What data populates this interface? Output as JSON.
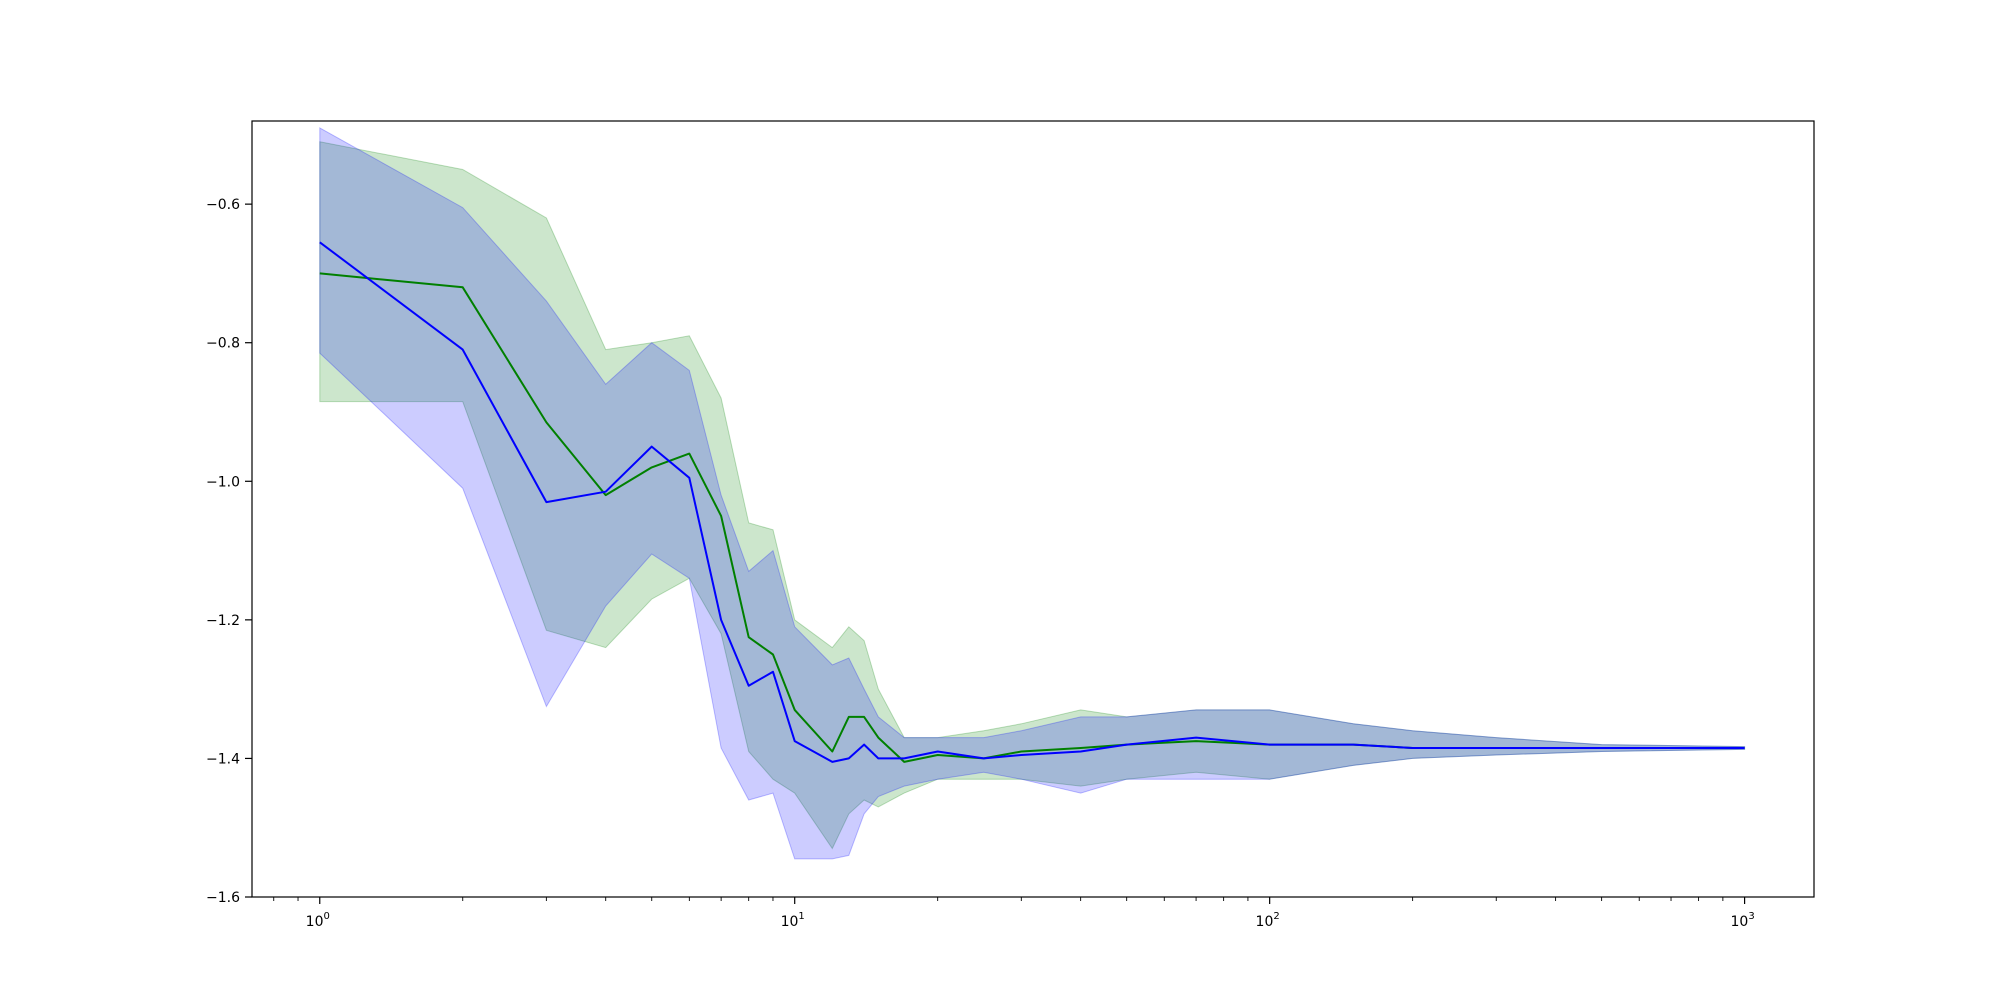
{
  "chart_data": {
    "type": "line",
    "title": "",
    "xlabel": "",
    "ylabel": "",
    "xscale": "log",
    "xlim": [
      0.72,
      1400
    ],
    "ylim": [
      -1.6,
      -0.48
    ],
    "grid": false,
    "legend": "none",
    "x_ticks": [
      {
        "value": 1,
        "base": "10",
        "exp": "0"
      },
      {
        "value": 10,
        "base": "10",
        "exp": "1"
      },
      {
        "value": 100,
        "base": "10",
        "exp": "2"
      },
      {
        "value": 1000,
        "base": "10",
        "exp": "3"
      }
    ],
    "y_ticks": [
      {
        "value": -1.6,
        "label": "−1.6"
      },
      {
        "value": -1.4,
        "label": "−1.4"
      },
      {
        "value": -1.2,
        "label": "−1.2"
      },
      {
        "value": -1.0,
        "label": "−1.0"
      },
      {
        "value": -0.8,
        "label": "−0.8"
      },
      {
        "value": -0.6,
        "label": "−0.6"
      }
    ],
    "series": [
      {
        "color": "#008000",
        "band_color": "#008000",
        "x": [
          1,
          2,
          3,
          4,
          5,
          6,
          7,
          8,
          9,
          10,
          12,
          13,
          14,
          15,
          17,
          20,
          25,
          30,
          40,
          50,
          70,
          100,
          150,
          200,
          300,
          500,
          1000
        ],
        "y": [
          -0.7,
          -0.72,
          -0.915,
          -1.02,
          -0.98,
          -0.96,
          -1.05,
          -1.225,
          -1.25,
          -1.33,
          -1.39,
          -1.34,
          -1.34,
          -1.37,
          -1.405,
          -1.395,
          -1.4,
          -1.39,
          -1.385,
          -1.38,
          -1.375,
          -1.38,
          -1.38,
          -1.385,
          -1.385,
          -1.385,
          -1.385
        ],
        "upper": [
          -0.51,
          -0.55,
          -0.62,
          -0.81,
          -0.8,
          -0.79,
          -0.88,
          -1.06,
          -1.07,
          -1.2,
          -1.24,
          -1.21,
          -1.23,
          -1.3,
          -1.37,
          -1.37,
          -1.36,
          -1.35,
          -1.33,
          -1.34,
          -1.33,
          -1.33,
          -1.35,
          -1.36,
          -1.37,
          -1.38,
          -1.383
        ],
        "lower": [
          -0.885,
          -0.885,
          -1.215,
          -1.24,
          -1.17,
          -1.14,
          -1.22,
          -1.39,
          -1.43,
          -1.45,
          -1.53,
          -1.48,
          -1.46,
          -1.47,
          -1.45,
          -1.43,
          -1.43,
          -1.43,
          -1.44,
          -1.43,
          -1.42,
          -1.43,
          -1.41,
          -1.4,
          -1.395,
          -1.39,
          -1.387
        ]
      },
      {
        "color": "#0000ff",
        "band_color": "#0000ff",
        "x": [
          1,
          2,
          3,
          4,
          5,
          6,
          7,
          8,
          9,
          10,
          12,
          13,
          14,
          15,
          17,
          20,
          25,
          30,
          40,
          50,
          70,
          100,
          150,
          200,
          300,
          500,
          1000
        ],
        "y": [
          -0.655,
          -0.81,
          -1.03,
          -1.015,
          -0.95,
          -0.995,
          -1.2,
          -1.295,
          -1.275,
          -1.375,
          -1.405,
          -1.4,
          -1.38,
          -1.4,
          -1.4,
          -1.39,
          -1.4,
          -1.395,
          -1.39,
          -1.38,
          -1.37,
          -1.38,
          -1.38,
          -1.385,
          -1.385,
          -1.385,
          -1.385
        ],
        "upper": [
          -0.49,
          -0.605,
          -0.74,
          -0.86,
          -0.8,
          -0.84,
          -1.02,
          -1.13,
          -1.1,
          -1.21,
          -1.265,
          -1.255,
          -1.3,
          -1.34,
          -1.37,
          -1.37,
          -1.37,
          -1.36,
          -1.34,
          -1.34,
          -1.33,
          -1.33,
          -1.35,
          -1.36,
          -1.37,
          -1.38,
          -1.383
        ],
        "lower": [
          -0.815,
          -1.01,
          -1.325,
          -1.18,
          -1.105,
          -1.14,
          -1.385,
          -1.46,
          -1.45,
          -1.545,
          -1.545,
          -1.54,
          -1.48,
          -1.455,
          -1.44,
          -1.43,
          -1.42,
          -1.43,
          -1.45,
          -1.43,
          -1.43,
          -1.43,
          -1.41,
          -1.4,
          -1.395,
          -1.39,
          -1.387
        ]
      }
    ]
  }
}
